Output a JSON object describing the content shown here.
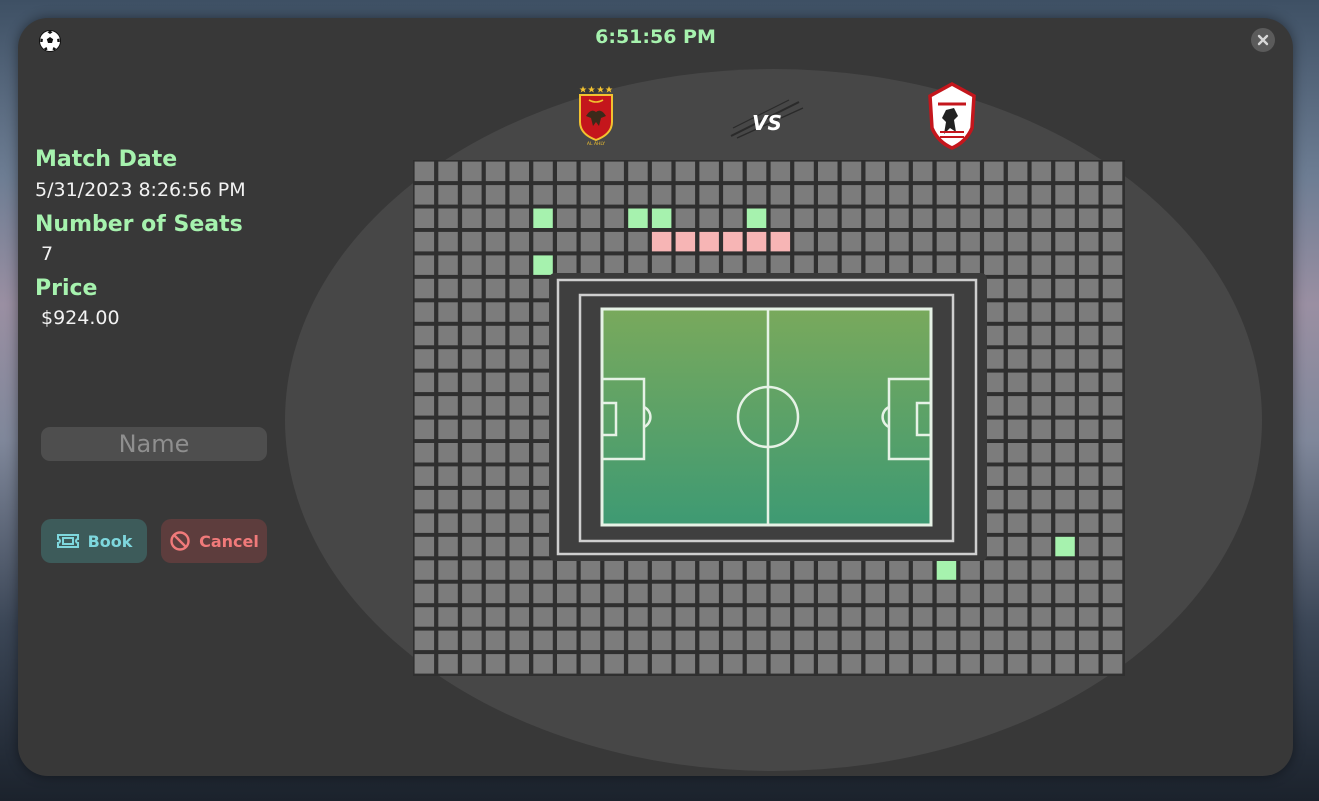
{
  "window": {
    "clock": "6:51:56 PM"
  },
  "details": {
    "match_date_label": "Match Date",
    "match_date_value": "5/31/2023 8:26:56 PM",
    "seats_label": "Number of Seats",
    "seats_value": "7",
    "price_label": "Price",
    "price_value": "$924.00"
  },
  "form": {
    "name_placeholder": "Name",
    "name_value": "",
    "book_label": "Book",
    "cancel_label": "Cancel"
  },
  "match": {
    "home_team_logo": "al-ahly-crest-icon",
    "versus_logo": "vs-icon",
    "away_team_logo": "zamalek-crest-icon"
  },
  "seating": {
    "rows": 22,
    "columns": 30,
    "pitch_block": {
      "row_start": 5,
      "row_end": 16,
      "col_start": 6,
      "col_end": 23
    },
    "selected_seats": [
      [
        2,
        5
      ],
      [
        2,
        9
      ],
      [
        2,
        10
      ],
      [
        2,
        14
      ],
      [
        4,
        5
      ],
      [
        16,
        27
      ],
      [
        17,
        22
      ]
    ],
    "booked_seats": [
      [
        3,
        10
      ],
      [
        3,
        11
      ],
      [
        3,
        12
      ],
      [
        3,
        13
      ],
      [
        3,
        14
      ],
      [
        3,
        15
      ]
    ]
  },
  "colors": {
    "accent": "#a6f2ae",
    "seat_free": "#7c7c7c",
    "seat_selected": "#a6f2ae",
    "seat_booked": "#f7b5b5",
    "book_button": "#3d5b5a",
    "cancel_button": "#5d3d3d"
  }
}
